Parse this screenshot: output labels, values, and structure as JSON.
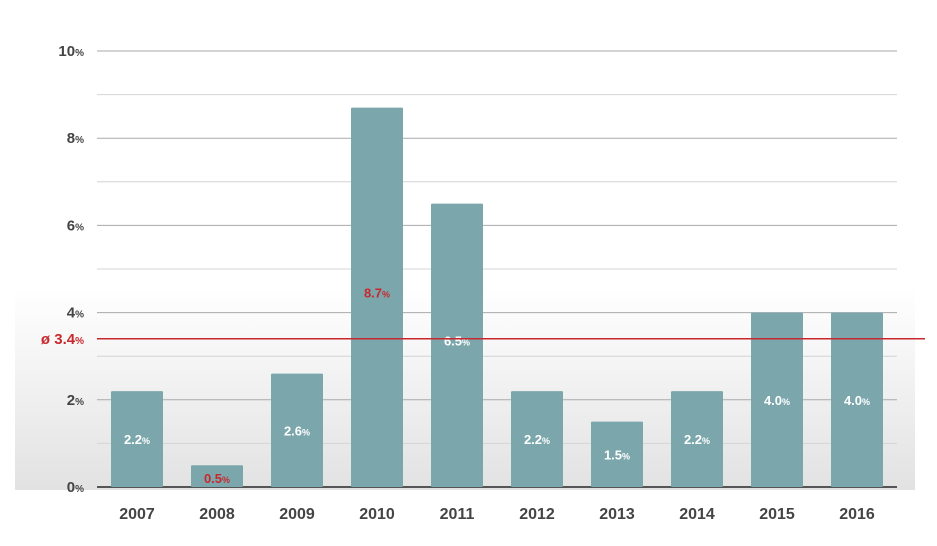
{
  "chart_data": {
    "type": "bar",
    "title": "",
    "xlabel": "",
    "ylabel": "",
    "categories": [
      "2007",
      "2008",
      "2009",
      "2010",
      "2011",
      "2012",
      "2013",
      "2014",
      "2015",
      "2016"
    ],
    "values": [
      2.2,
      0.5,
      2.6,
      8.7,
      6.5,
      2.2,
      1.5,
      2.2,
      4.0,
      4.0
    ],
    "data_labels": [
      "2.2",
      "0.5",
      "2.6",
      "8.7",
      "6.5",
      "2.2",
      "1.5",
      "2.2",
      "4.0",
      "4.0"
    ],
    "label_colors": [
      "#ffffff",
      "#c8282d",
      "#ffffff",
      "#c8282d",
      "#ffffff",
      "#ffffff",
      "#ffffff",
      "#ffffff",
      "#ffffff",
      "#ffffff"
    ],
    "unit": "%",
    "ylim": [
      0,
      10
    ],
    "yticks": [
      0,
      2,
      4,
      6,
      8,
      10
    ],
    "ytick_labels": [
      "0",
      "2",
      "4",
      "6",
      "8",
      "10"
    ],
    "grid": true,
    "average": {
      "value": 3.4,
      "label": "ø 3.4",
      "color": "#c8282d"
    },
    "bar_color": "#7ba7ac"
  }
}
